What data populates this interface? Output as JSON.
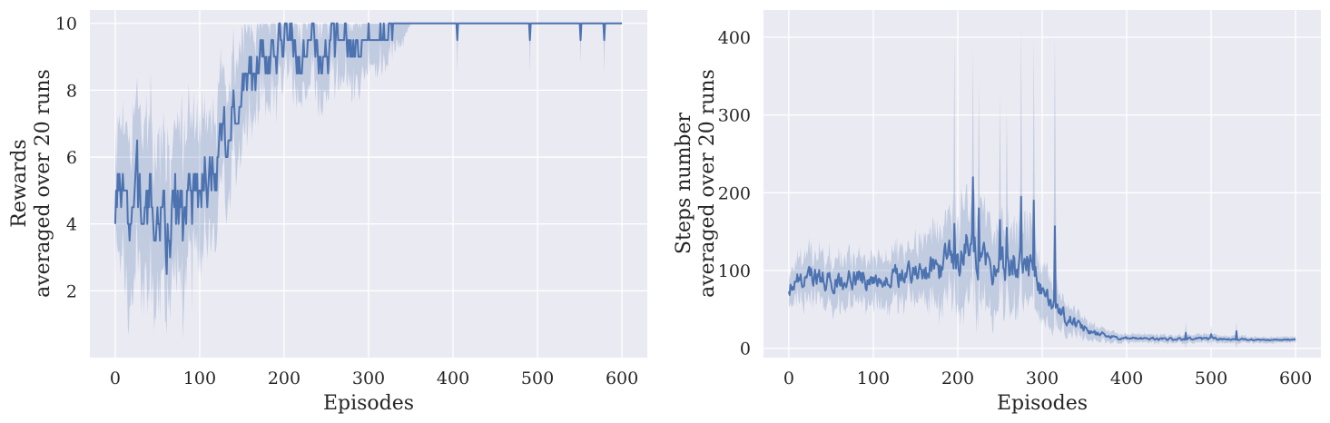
{
  "chart_data": [
    {
      "type": "line",
      "title": "",
      "xlabel": "Episodes",
      "ylabel_lines": [
        "Rewards",
        "averaged over 20 runs"
      ],
      "xlim": [
        -30,
        630
      ],
      "ylim": [
        0,
        10.4
      ],
      "xticks": [
        0,
        100,
        200,
        300,
        400,
        500,
        600
      ],
      "yticks": [
        2,
        4,
        6,
        8,
        10
      ],
      "grid": true,
      "line_color": "#4c72b0",
      "band_color": "#4c72b0",
      "background": "#eaeaf2",
      "series": [
        {
          "x": [
            0,
            10,
            20,
            30,
            40,
            50,
            60,
            70,
            80,
            90,
            100,
            110,
            120,
            130,
            140,
            150,
            160,
            170,
            180,
            190,
            200,
            210,
            220,
            230,
            240,
            250,
            260,
            270,
            280,
            290,
            300,
            310,
            320,
            330,
            340,
            350,
            400,
            450,
            500,
            550,
            600
          ],
          "mean": [
            4.5,
            4.3,
            4.6,
            4.4,
            4.3,
            4.5,
            4.0,
            4.6,
            4.2,
            4.8,
            5.3,
            5.6,
            6.0,
            6.8,
            7.7,
            8.1,
            8.4,
            8.8,
            8.9,
            9.1,
            9.2,
            9.2,
            9.3,
            9.4,
            9.2,
            9.3,
            9.3,
            9.3,
            9.4,
            9.6,
            9.7,
            9.6,
            9.8,
            9.8,
            9.9,
            10.0,
            10.0,
            10.0,
            10.0,
            10.0,
            10.0
          ],
          "amp": [
            1.2,
            1.6,
            1.5,
            1.5,
            1.4,
            1.4,
            1.4,
            1.3,
            1.4,
            1.4,
            1.3,
            1.2,
            1.2,
            1.2,
            1.1,
            1.0,
            1.0,
            0.9,
            0.9,
            0.8,
            0.8,
            0.8,
            0.7,
            0.7,
            0.8,
            0.7,
            0.7,
            0.7,
            0.6,
            0.5,
            0.4,
            0.4,
            0.3,
            0.3,
            0.2,
            0.0,
            0.0,
            0.0,
            0.0,
            0.0,
            0.0
          ],
          "band": [
            1.5,
            2.5,
            2.6,
            2.5,
            2.4,
            2.4,
            2.3,
            2.2,
            2.3,
            2.2,
            2.0,
            1.9,
            1.8,
            1.7,
            1.6,
            1.5,
            1.4,
            1.3,
            1.3,
            1.3,
            1.3,
            1.3,
            1.2,
            1.2,
            1.3,
            1.2,
            1.2,
            1.2,
            1.1,
            1.0,
            0.9,
            0.9,
            0.8,
            0.7,
            0.6,
            0.0,
            0.0,
            0.0,
            0.0,
            0.0,
            0.0
          ],
          "dips": [
            {
              "x": 405,
              "mean": 9.5,
              "low": 8.5
            },
            {
              "x": 491,
              "mean": 9.5,
              "low": 8.5
            },
            {
              "x": 551,
              "mean": 9.5,
              "low": 8.8
            },
            {
              "x": 579,
              "mean": 9.5,
              "low": 8.5
            }
          ]
        }
      ]
    },
    {
      "type": "line",
      "title": "",
      "xlabel": "Episodes",
      "ylabel_lines": [
        "Steps number",
        "averaged over 20 runs"
      ],
      "xlim": [
        -30,
        630
      ],
      "ylim": [
        -12,
        435
      ],
      "xticks": [
        0,
        100,
        200,
        300,
        400,
        500,
        600
      ],
      "yticks": [
        0,
        100,
        200,
        300,
        400
      ],
      "grid": true,
      "line_color": "#4c72b0",
      "band_color": "#4c72b0",
      "background": "#eaeaf2",
      "series": [
        {
          "x": [
            0,
            20,
            40,
            60,
            80,
            100,
            120,
            140,
            160,
            180,
            190,
            200,
            210,
            220,
            230,
            240,
            250,
            260,
            270,
            280,
            290,
            300,
            310,
            320,
            330,
            340,
            350,
            360,
            380,
            400,
            450,
            500,
            550,
            600
          ],
          "mean": [
            78,
            90,
            90,
            88,
            92,
            88,
            90,
            96,
            100,
            108,
            112,
            118,
            125,
            122,
            112,
            105,
            102,
            108,
            110,
            104,
            96,
            68,
            56,
            44,
            38,
            30,
            26,
            20,
            15,
            13,
            12,
            12,
            11,
            11
          ],
          "amp": [
            14,
            16,
            16,
            16,
            16,
            16,
            16,
            18,
            20,
            24,
            26,
            30,
            34,
            30,
            28,
            26,
            25,
            26,
            26,
            25,
            22,
            16,
            14,
            12,
            10,
            8,
            7,
            5,
            3,
            2,
            2,
            2,
            1,
            1
          ],
          "band": [
            22,
            30,
            30,
            30,
            30,
            30,
            32,
            36,
            40,
            50,
            55,
            62,
            70,
            65,
            58,
            52,
            50,
            55,
            55,
            52,
            45,
            35,
            30,
            25,
            20,
            16,
            13,
            10,
            7,
            6,
            5,
            5,
            4,
            4
          ],
          "spikes": [
            {
              "x": 196,
              "peak": 400,
              "mean": 160
            },
            {
              "x": 218,
              "peak": 385,
              "mean": 220
            },
            {
              "x": 225,
              "peak": 345,
              "mean": 180
            },
            {
              "x": 250,
              "peak": 330,
              "mean": 165
            },
            {
              "x": 258,
              "peak": 310,
              "mean": 155
            },
            {
              "x": 275,
              "peak": 415,
              "mean": 195
            },
            {
              "x": 290,
              "peak": 400,
              "mean": 190
            },
            {
              "x": 315,
              "peak": 405,
              "mean": 157
            },
            {
              "x": 470,
              "peak": 35,
              "mean": 20
            },
            {
              "x": 500,
              "peak": 30,
              "mean": 18
            },
            {
              "x": 530,
              "peak": 35,
              "mean": 22
            }
          ]
        }
      ]
    }
  ]
}
